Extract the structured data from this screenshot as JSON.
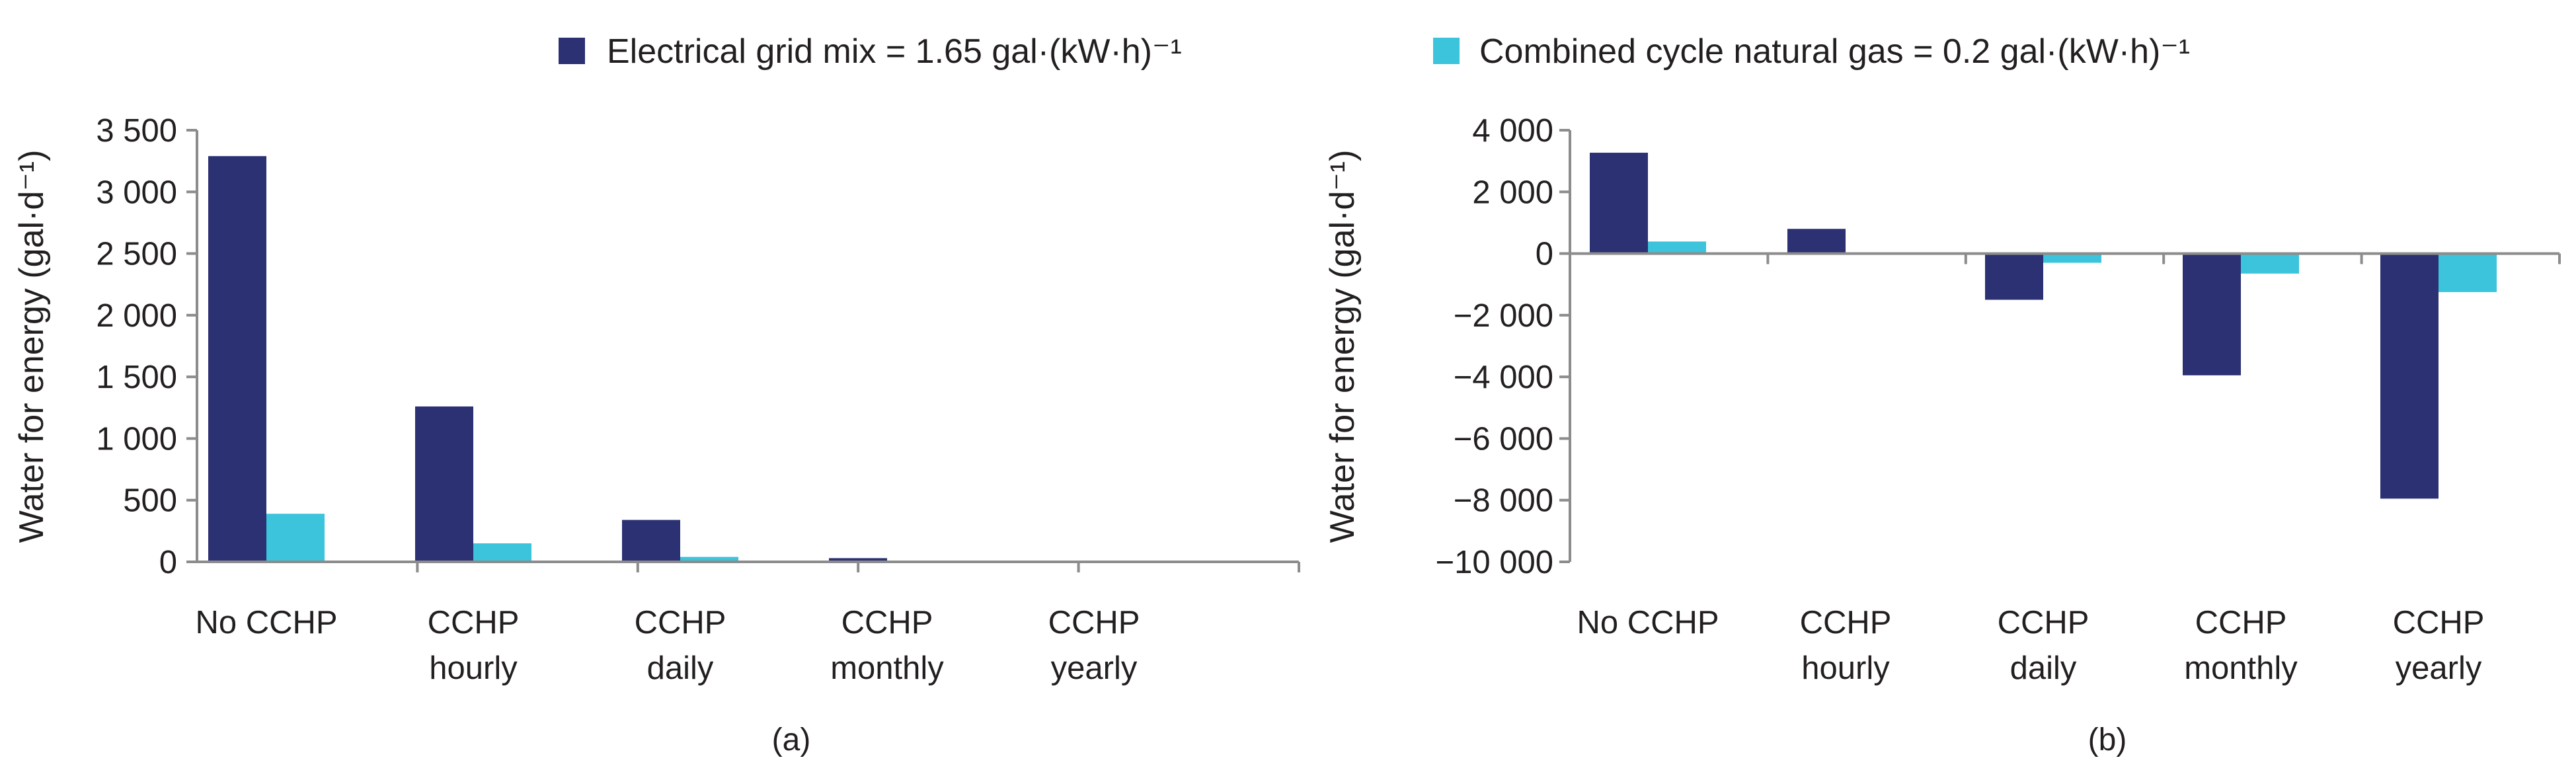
{
  "legend": {
    "items": [
      {
        "label": "Electrical grid mix = 1.65 gal·(kW·h)⁻¹",
        "color": "#2b3172"
      },
      {
        "label": "Combined cycle natural gas = 0.2 gal·(kW·h)⁻¹",
        "color": "#3cc4dc"
      }
    ]
  },
  "chart_data": [
    {
      "type": "bar",
      "panel_label": "(a)",
      "ylabel": "Water for energy (gal·d⁻¹)",
      "ylim": [
        0,
        3500
      ],
      "yticks": [
        0,
        500,
        1000,
        1500,
        2000,
        2500,
        3000,
        3500
      ],
      "ytick_labels": [
        "0",
        "500",
        "1 000",
        "1 500",
        "2 000",
        "2 500",
        "3 000",
        "3 500"
      ],
      "categories": [
        [
          "No CCHP"
        ],
        [
          "CCHP",
          "hourly"
        ],
        [
          "CCHP",
          "daily"
        ],
        [
          "CCHP",
          "monthly"
        ],
        [
          "CCHP",
          "yearly"
        ]
      ],
      "series": [
        {
          "name": "Electrical grid mix = 1.65 gal·(kW·h)⁻¹",
          "color": "#2b3172",
          "values": [
            3290,
            1260,
            340,
            30,
            0
          ]
        },
        {
          "name": "Combined cycle natural gas = 0.2 gal·(kW·h)⁻¹",
          "color": "#3cc4dc",
          "values": [
            390,
            150,
            40,
            5,
            0
          ]
        }
      ],
      "grid": false,
      "legend_position": "top"
    },
    {
      "type": "bar",
      "panel_label": "(b)",
      "ylabel": "Water for energy (gal·d⁻¹)",
      "ylim": [
        -10000,
        4000
      ],
      "yticks": [
        -10000,
        -8000,
        -6000,
        -4000,
        -2000,
        0,
        2000,
        4000
      ],
      "ytick_labels": [
        "−10 000",
        "−8 000",
        "−6 000",
        "−4 000",
        "−2 000",
        "0",
        "2 000",
        "4 000"
      ],
      "categories": [
        [
          "No CCHP"
        ],
        [
          "CCHP",
          "hourly"
        ],
        [
          "CCHP",
          "daily"
        ],
        [
          "CCHP",
          "monthly"
        ],
        [
          "CCHP",
          "yearly"
        ]
      ],
      "series": [
        {
          "name": "Electrical grid mix = 1.65 gal·(kW·h)⁻¹",
          "color": "#2b3172",
          "values": [
            3270,
            800,
            -1500,
            -3950,
            -7950
          ]
        },
        {
          "name": "Combined cycle natural gas = 0.2 gal·(kW·h)⁻¹",
          "color": "#3cc4dc",
          "values": [
            390,
            0,
            -300,
            -650,
            -1250
          ]
        }
      ],
      "grid": false,
      "legend_position": "top"
    }
  ]
}
